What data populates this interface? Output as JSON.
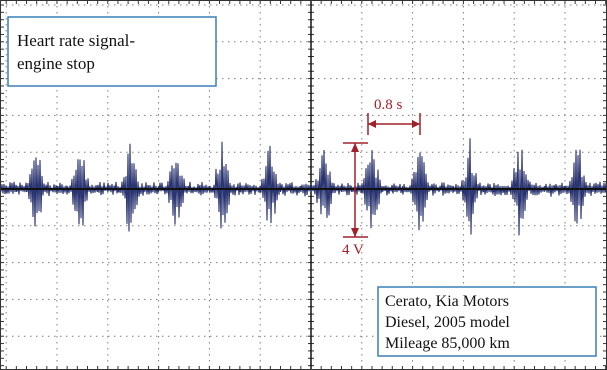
{
  "chart_data": {
    "type": "line",
    "grid": true,
    "title_box": {
      "line1": "Heart rate signal-",
      "line2": "engine stop"
    },
    "info_box": {
      "line1": "Cerato, Kia Motors",
      "line2": "Diesel, 2005 model",
      "line3": "Mileage 85,000 km"
    },
    "time_annotation": "0.8 s",
    "voltage_annotation": "4 V",
    "colors": {
      "trace": "#2a3470",
      "axis": "#111111",
      "grid": "#7f7f7f",
      "annotation": "#a0202c",
      "box_border": "#3c7fb8",
      "frame": "#333333"
    }
  }
}
